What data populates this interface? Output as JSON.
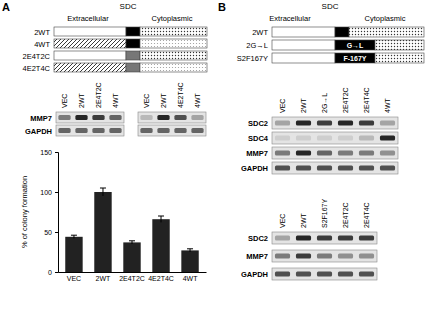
{
  "panel_a": {
    "label": "A",
    "schematic": {
      "title": "SDC",
      "regions": [
        "Extracellular",
        "Cytoplasmic"
      ],
      "constructs": [
        {
          "name": "2WT",
          "ecto": "SDC2",
          "tm": "SDC2",
          "cyto": "SDC2"
        },
        {
          "name": "4WT",
          "ecto": "SDC4",
          "tm": "SDC4",
          "cyto": "SDC4"
        },
        {
          "name": "2E4T2C",
          "ecto": "SDC2",
          "tm": "SDC4",
          "cyto": "SDC2"
        },
        {
          "name": "4E2T4C",
          "ecto": "SDC4",
          "tm": "SDC2",
          "cyto": "SDC4"
        }
      ]
    },
    "gels": [
      {
        "lanes": [
          "VEC",
          "2WT",
          "2E4T2C",
          "4WT"
        ],
        "rows": [
          {
            "name": "MMP7",
            "intensity": [
              0.5,
              0.9,
              0.8,
              0.6
            ]
          },
          {
            "name": "GAPDH",
            "intensity": [
              0.6,
              0.6,
              0.6,
              0.6
            ]
          }
        ]
      },
      {
        "lanes": [
          "VEC",
          "2WT",
          "4E2T4C",
          "4WT"
        ],
        "rows": [
          {
            "intensity": [
              0.2,
              0.9,
              0.7,
              0.3
            ]
          },
          {
            "intensity": [
              0.6,
              0.6,
              0.6,
              0.6
            ]
          }
        ]
      }
    ]
  },
  "panel_b": {
    "label": "B",
    "schematic": {
      "title": "SDC",
      "regions": [
        "Extracellular",
        "Cytoplasmic"
      ],
      "constructs": [
        {
          "name": "2WT",
          "ecto": "SDC2",
          "tm": "SDC2",
          "cyto": "SDC2"
        },
        {
          "name": "2G→L",
          "ecto": "SDC2",
          "tm": "SDC2",
          "cyto": "SDC2",
          "tm_label": "G→L"
        },
        {
          "name": "S2F167Y",
          "ecto": "SDC2",
          "tm": "SDC2",
          "cyto": "SDC2",
          "tm_label": "F-167Y"
        }
      ]
    },
    "gels": [
      {
        "lanes": [
          "VEC",
          "2WT",
          "2G→L",
          "2E4T2C",
          "2E4T4C",
          "4WT"
        ],
        "rows": [
          {
            "name": "SDC2",
            "intensity": [
              0.3,
              0.9,
              0.8,
              0.9,
              0.8,
              0.3
            ]
          },
          {
            "name": "SDC4",
            "intensity": [
              0.1,
              0.1,
              0.1,
              0.1,
              0.2,
              0.9
            ]
          },
          {
            "name": "MMP7",
            "intensity": [
              0.5,
              0.9,
              0.6,
              0.5,
              0.5,
              0.4
            ]
          },
          {
            "name": "GAPDH",
            "intensity": [
              0.7,
              0.7,
              0.7,
              0.7,
              0.7,
              0.7
            ]
          }
        ]
      },
      {
        "lanes": [
          "VEC",
          "2WT",
          "S2F167Y",
          "2E4T2C",
          "2E4T4C"
        ],
        "rows": [
          {
            "name": "SDC2",
            "intensity": [
              0.3,
              0.9,
              0.8,
              0.8,
              0.8
            ]
          },
          {
            "name": "MMP7",
            "intensity": [
              0.5,
              0.8,
              0.5,
              0.4,
              0.4
            ]
          },
          {
            "name": "GAPDH",
            "intensity": [
              0.7,
              0.7,
              0.7,
              0.7,
              0.7
            ]
          }
        ]
      }
    ]
  },
  "chart_data": {
    "type": "bar",
    "y_label": "% of colony formation",
    "categories": [
      "VEC",
      "2WT",
      "2E4T2C",
      "4E2T4C",
      "4WT"
    ],
    "values": [
      44,
      100,
      37,
      66,
      27
    ],
    "errors": [
      2,
      5,
      2,
      4,
      2
    ],
    "color": "#222222",
    "ylim": [
      0,
      150
    ],
    "yticks": [
      0,
      50,
      100,
      150
    ]
  }
}
